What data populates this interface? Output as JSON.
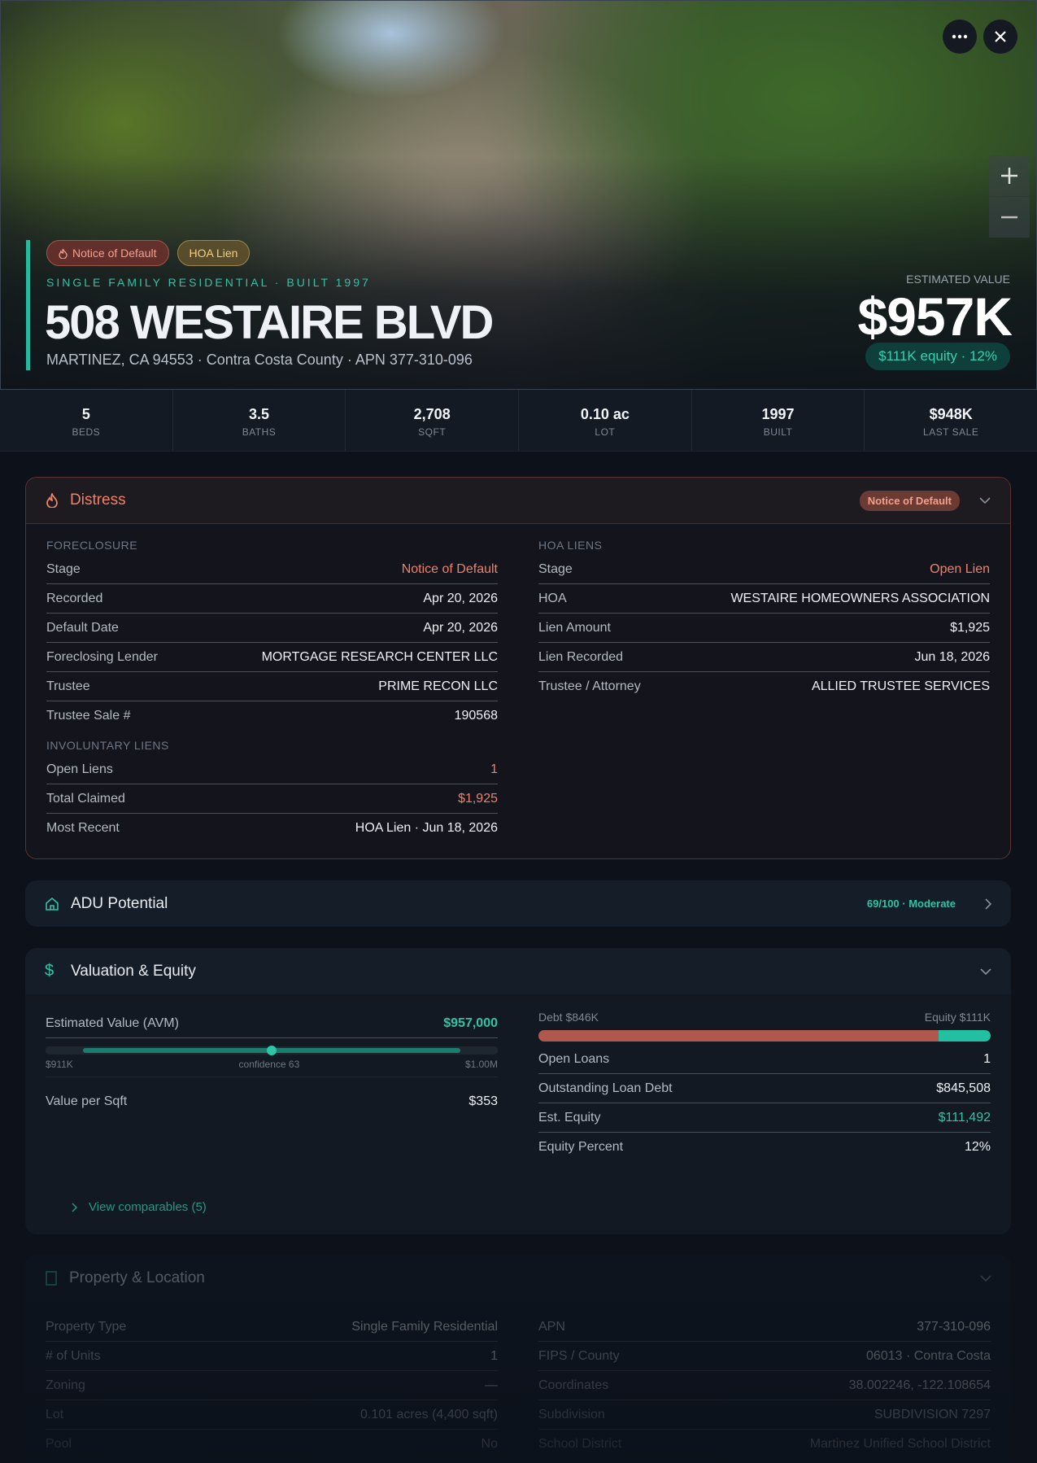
{
  "header": {
    "badges": [
      "Notice of Default",
      "HOA Lien"
    ],
    "subtitle": "SINGLE FAMILY RESIDENTIAL · BUILT 1997",
    "title": "508 WESTAIRE BLVD",
    "address": "MARTINEZ, CA 94553 · Contra Costa County · APN 377-310-096",
    "value_label": "ESTIMATED VALUE",
    "value": "$957K",
    "equity": "$111K equity · 12%"
  },
  "stats": [
    {
      "value": "5",
      "label": "BEDS"
    },
    {
      "value": "3.5",
      "label": "BATHS"
    },
    {
      "value": "2,708",
      "label": "SQFT"
    },
    {
      "value": "0.10 ac",
      "label": "LOT"
    },
    {
      "value": "1997",
      "label": "BUILT"
    },
    {
      "value": "$948K",
      "label": "LAST SALE"
    }
  ],
  "distress": {
    "title": "Distress",
    "badge": "Notice of Default",
    "left": [
      {
        "heading": "FORECLOSURE",
        "rows": [
          {
            "label": "Stage",
            "value": "Notice of Default",
            "color": "#f0806a"
          },
          {
            "label": "Recorded",
            "value": "Apr 20, 2026"
          },
          {
            "label": "Default Date",
            "value": "Apr 20, 2026"
          },
          {
            "label": "Foreclosing Lender",
            "value": "MORTGAGE RESEARCH CENTER LLC"
          },
          {
            "label": "Trustee",
            "value": "PRIME RECON LLC"
          },
          {
            "label": "Trustee Sale #",
            "value": "190568"
          }
        ]
      },
      {
        "heading": "INVOLUNTARY LIENS",
        "rows": [
          {
            "label": "Open Liens",
            "value": "1",
            "color": "#f0806a"
          },
          {
            "label": "Total Claimed",
            "value": "$1,925",
            "color": "#f0806a"
          },
          {
            "label": "Most Recent",
            "value": "HOA Lien · Jun 18, 2026"
          }
        ]
      }
    ],
    "right": [
      {
        "heading": "HOA LIENS",
        "rows": [
          {
            "label": "Stage",
            "value": "Open Lien",
            "color": "#f0806a"
          },
          {
            "label": "HOA",
            "value": "WESTAIRE HOMEOWNERS ASSOCIATION"
          },
          {
            "label": "Lien Amount",
            "value": "$1,925"
          },
          {
            "label": "Lien Recorded",
            "value": "Jun 18, 2026"
          },
          {
            "label": "Trustee / Attorney",
            "value": "ALLIED TRUSTEE SERVICES"
          }
        ]
      }
    ]
  },
  "adu": {
    "title": "ADU Potential",
    "score": "69/100 · Moderate"
  },
  "valuation": {
    "title": "Valuation & Equity",
    "avm_label": "Estimated Value (AVM)",
    "avm_value": "$957,000",
    "range_low": "$911K",
    "confidence": "confidence 63",
    "range_high": "$1.00M",
    "left_rows": [
      {
        "label": "Value per Sqft",
        "value": "$353"
      }
    ],
    "debt_label": "Debt $846K",
    "equity_label": "Equity $111K",
    "right_rows": [
      {
        "label": "Open Loans",
        "value": "1"
      },
      {
        "label": "Outstanding Loan Debt",
        "value": "$845,508"
      },
      {
        "label": "Est. Equity",
        "value": "$111,492",
        "color": "#2ec4a6"
      },
      {
        "label": "Equity Percent",
        "value": "12%"
      }
    ],
    "comparables": "View comparables (5)"
  },
  "property": {
    "title": "Property & Location",
    "left_rows": [
      {
        "label": "Property Type",
        "value": "Single Family Residential"
      },
      {
        "label": "# of Units",
        "value": "1"
      },
      {
        "label": "Zoning",
        "value": "—"
      },
      {
        "label": "Lot",
        "value": "0.101 acres (4,400 sqft)"
      },
      {
        "label": "Pool",
        "value": "No"
      }
    ],
    "right_rows": [
      {
        "label": "APN",
        "value": "377-310-096"
      },
      {
        "label": "FIPS / County",
        "value": "06013 · Contra Costa"
      },
      {
        "label": "Coordinates",
        "value": "38.002246, -122.108654"
      },
      {
        "label": "Subdivision",
        "value": "SUBDIVISION 7297"
      },
      {
        "label": "School District",
        "value": "Martinez Unified School District"
      }
    ]
  }
}
